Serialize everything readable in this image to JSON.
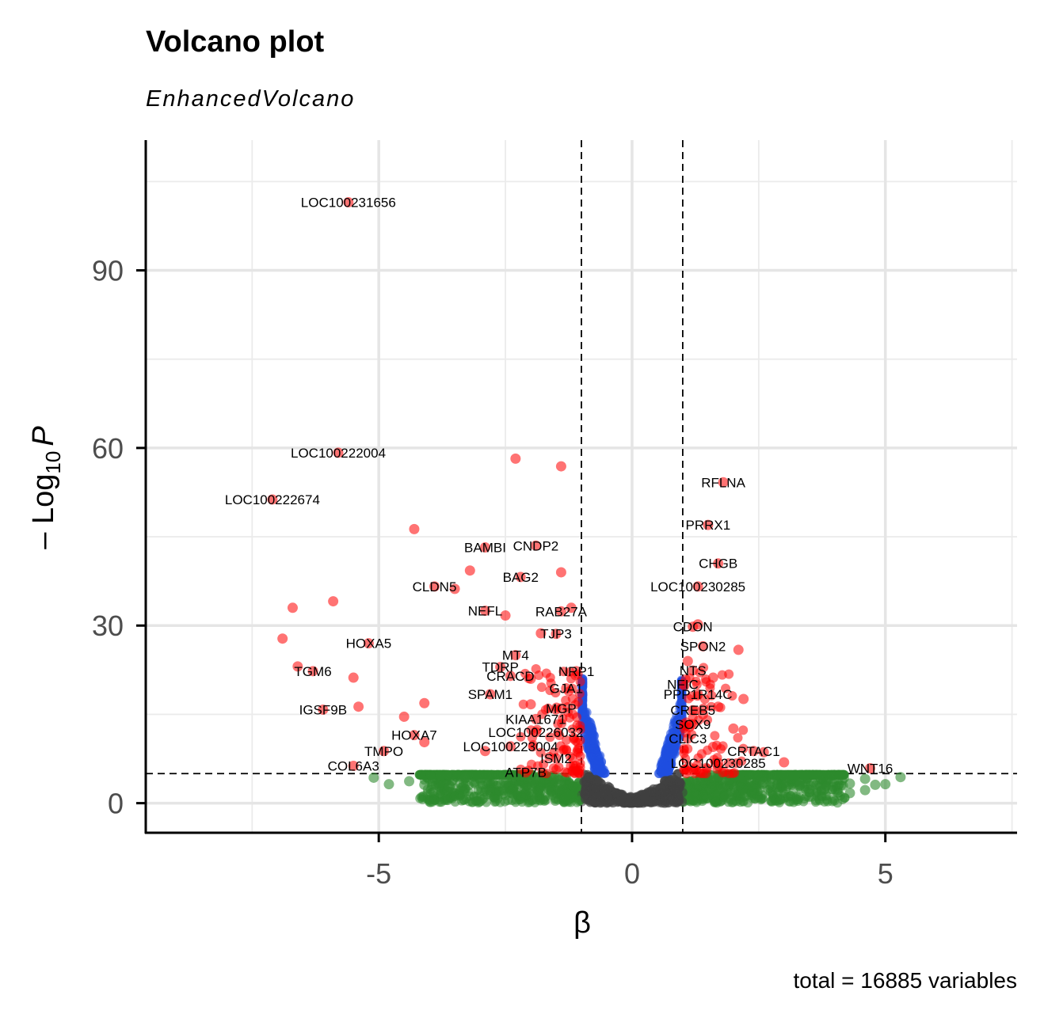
{
  "chart_data": {
    "type": "scatter",
    "title": "Volcano plot",
    "subtitle": "EnhancedVolcano",
    "xlabel": "β",
    "ylabel": "- Log10 P",
    "ylabel_main": "– Log",
    "ylabel_sub": "10",
    "ylabel_var": "P",
    "caption": "total = 16885 variables",
    "xlim": [
      -9.6,
      7.6
    ],
    "ylim": [
      -5,
      112
    ],
    "x_ticks": [
      "-5",
      "0",
      "5"
    ],
    "x_tick_values": [
      -5,
      0,
      5
    ],
    "y_ticks": [
      "0",
      "30",
      "60",
      "90"
    ],
    "y_tick_values": [
      0,
      30,
      60,
      90
    ],
    "grid": true,
    "cutoffs": {
      "beta": [
        -1,
        1
      ],
      "neg_log10_p": 5
    },
    "colors": {
      "not_significant": "#404040",
      "p_only": "#1f4fe0",
      "beta_only": "#2e8b2e",
      "p_and_beta": "#ff0000"
    },
    "labeled_points": [
      {
        "label": "LOC100231656",
        "x": -5.6,
        "y": 101.5
      },
      {
        "label": "LOC100222004",
        "x": -5.8,
        "y": 59.2
      },
      {
        "label": "LOC100222674",
        "x": -7.1,
        "y": 51.3
      },
      {
        "label": "RFLNA",
        "x": 1.8,
        "y": 54.2
      },
      {
        "label": "PRRX1",
        "x": 1.5,
        "y": 47.0
      },
      {
        "label": "BAMBI",
        "x": -2.9,
        "y": 43.2
      },
      {
        "label": "CNDP2",
        "x": -1.9,
        "y": 43.5
      },
      {
        "label": "CHGB",
        "x": 1.7,
        "y": 40.5
      },
      {
        "label": "BAG2",
        "x": -2.2,
        "y": 38.2
      },
      {
        "label": "CLDN5",
        "x": -3.9,
        "y": 36.6
      },
      {
        "label": "LOC100230285",
        "x": 1.3,
        "y": 36.6
      },
      {
        "label": "NEFL",
        "x": -2.9,
        "y": 32.5
      },
      {
        "label": "RAB27A",
        "x": -1.4,
        "y": 32.4
      },
      {
        "label": "CDON",
        "x": 1.2,
        "y": 29.8
      },
      {
        "label": "TJP3",
        "x": -1.5,
        "y": 28.6
      },
      {
        "label": "HOXA5",
        "x": -5.2,
        "y": 27.0
      },
      {
        "label": "SPON2",
        "x": 1.4,
        "y": 26.5
      },
      {
        "label": "MT4",
        "x": -2.3,
        "y": 25.0
      },
      {
        "label": "TDRP",
        "x": -2.6,
        "y": 23.0
      },
      {
        "label": "NTS",
        "x": 1.2,
        "y": 22.4
      },
      {
        "label": "NRP1",
        "x": -1.1,
        "y": 22.3
      },
      {
        "label": "TGM6",
        "x": -6.3,
        "y": 22.3
      },
      {
        "label": "CRACD",
        "x": -2.4,
        "y": 21.5
      },
      {
        "label": "NFIC",
        "x": 1.0,
        "y": 20.1
      },
      {
        "label": "GJA1",
        "x": -1.3,
        "y": 19.4
      },
      {
        "label": "SPAM1",
        "x": -2.8,
        "y": 18.4
      },
      {
        "label": "PPP1R14C",
        "x": 1.3,
        "y": 18.4
      },
      {
        "label": "MGP",
        "x": -1.4,
        "y": 16.0
      },
      {
        "label": "IGSF9B",
        "x": -6.1,
        "y": 15.8
      },
      {
        "label": "CREB5",
        "x": 1.2,
        "y": 15.7
      },
      {
        "label": "KIAA1671",
        "x": -1.9,
        "y": 14.2
      },
      {
        "label": "SOX9",
        "x": 1.2,
        "y": 13.3
      },
      {
        "label": "LOC100226032",
        "x": -1.9,
        "y": 12.0
      },
      {
        "label": "HOXA7",
        "x": -4.3,
        "y": 11.5
      },
      {
        "label": "CLIC3",
        "x": 1.1,
        "y": 10.9
      },
      {
        "label": "LOC100223004",
        "x": -2.4,
        "y": 9.6
      },
      {
        "label": "TMPO",
        "x": -4.9,
        "y": 8.8
      },
      {
        "label": "CRTAC1",
        "x": 2.4,
        "y": 8.8
      },
      {
        "label": "ISM2",
        "x": -1.5,
        "y": 7.6
      },
      {
        "label": "LOC100230285",
        "x": 1.7,
        "y": 6.8
      },
      {
        "label": "COL6A3",
        "x": -5.5,
        "y": 6.3
      },
      {
        "label": "WNT16",
        "x": 4.7,
        "y": 5.9
      },
      {
        "label": "ATP7B",
        "x": -2.1,
        "y": 5.2
      }
    ],
    "extra_points": [
      {
        "x": -2.3,
        "y": 58.2
      },
      {
        "x": -1.4,
        "y": 56.9
      },
      {
        "x": -4.3,
        "y": 46.3
      },
      {
        "x": -3.2,
        "y": 39.3
      },
      {
        "x": -1.4,
        "y": 39.0
      },
      {
        "x": -5.9,
        "y": 34.1
      },
      {
        "x": -6.7,
        "y": 33.0
      },
      {
        "x": -3.5,
        "y": 36.2
      },
      {
        "x": -2.5,
        "y": 31.7
      },
      {
        "x": -1.2,
        "y": 33.0
      },
      {
        "x": -6.9,
        "y": 27.8
      },
      {
        "x": -6.6,
        "y": 23.1
      },
      {
        "x": -5.5,
        "y": 21.2
      },
      {
        "x": -5.4,
        "y": 16.3
      },
      {
        "x": -4.1,
        "y": 16.9
      },
      {
        "x": -4.5,
        "y": 14.6
      },
      {
        "x": -4.1,
        "y": 10.3
      },
      {
        "x": -2.9,
        "y": 8.8
      },
      {
        "x": -2.0,
        "y": 16.7
      },
      {
        "x": -1.8,
        "y": 28.7
      },
      {
        "x": -2.0,
        "y": 21.0
      },
      {
        "x": 2.1,
        "y": 25.9
      },
      {
        "x": 1.6,
        "y": 21.2
      },
      {
        "x": 2.2,
        "y": 17.6
      },
      {
        "x": 1.7,
        "y": 16.3
      },
      {
        "x": 2.0,
        "y": 12.6
      },
      {
        "x": 1.6,
        "y": 9.5
      },
      {
        "x": 3.0,
        "y": 6.9
      },
      {
        "x": 2.6,
        "y": 8.6
      },
      {
        "x": 1.3,
        "y": 30.2
      },
      {
        "x": 1.4,
        "y": 15.0
      },
      {
        "x": 1.1,
        "y": 24.0
      }
    ],
    "beta_only_points": [
      {
        "x": -5.1,
        "y": 4.3
      },
      {
        "x": -4.8,
        "y": 3.2
      },
      {
        "x": -4.4,
        "y": 3.7
      },
      {
        "x": -4.1,
        "y": 3.1
      },
      {
        "x": -3.6,
        "y": 2.8
      },
      {
        "x": -3.3,
        "y": 4.2
      },
      {
        "x": -2.5,
        "y": 3.5
      },
      {
        "x": 2.6,
        "y": 3.4
      },
      {
        "x": 3.3,
        "y": 2.9
      },
      {
        "x": 3.8,
        "y": 2.4
      },
      {
        "x": 4.3,
        "y": 3.3
      },
      {
        "x": 4.3,
        "y": 1.7
      },
      {
        "x": 4.6,
        "y": 2.2
      },
      {
        "x": 4.8,
        "y": 3.1
      },
      {
        "x": 5.0,
        "y": 3.2
      },
      {
        "x": 5.3,
        "y": 4.4
      },
      {
        "x": 4.6,
        "y": 4.1
      },
      {
        "x": 3.5,
        "y": 1.9
      }
    ]
  }
}
